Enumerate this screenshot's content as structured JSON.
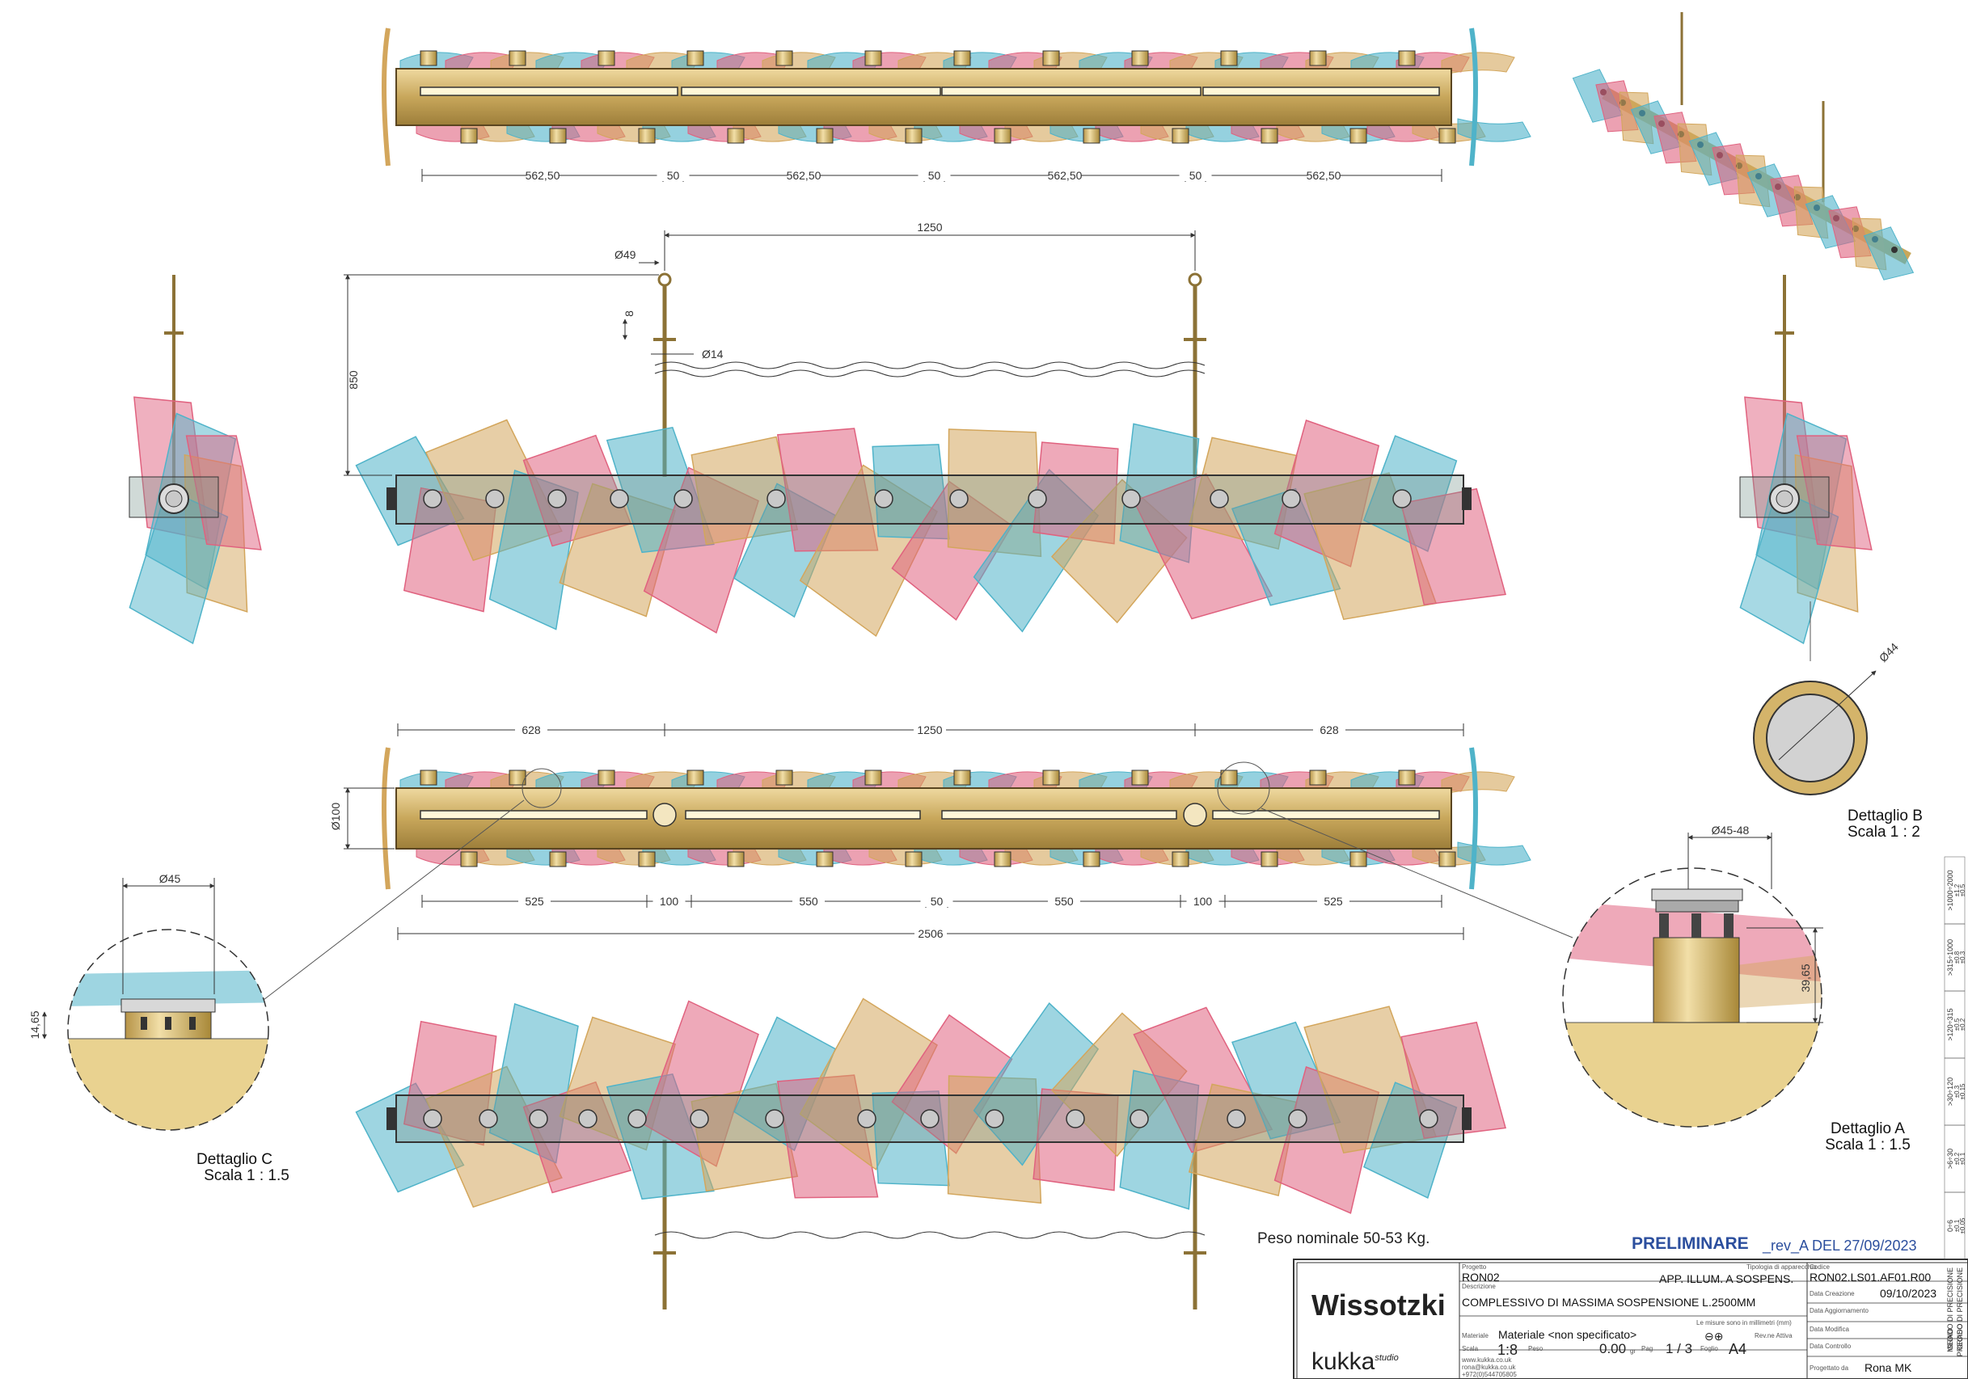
{
  "colors": {
    "brass": "#c8a75b",
    "brass_dark": "#8c7236",
    "teal": "#4fb3c9",
    "pink": "#e0627f",
    "amber": "#d3a65c",
    "title_blue": "#2c4f9e",
    "line": "#333333"
  },
  "top_view": {
    "dims": [
      "562,50",
      "50",
      "562,50",
      "50",
      "562,50",
      "50",
      "562,50"
    ]
  },
  "front_view": {
    "dim_span": "1250",
    "dim_height": "850",
    "dim_eye": "Ø49",
    "dim_gap": "8",
    "dim_rod": "Ø14"
  },
  "section_view": {
    "dims_top": [
      "628",
      "1250",
      "628"
    ],
    "dim_height": "Ø100",
    "dims_bottom": [
      "525",
      "100",
      "550",
      "50",
      "550",
      "100",
      "525"
    ],
    "dim_total": "2506"
  },
  "detail_a": {
    "title": "Dettaglio A",
    "scale": "Scala 1 : 1.5",
    "dim_dia": "Ø45-48",
    "dim_height": "39,65"
  },
  "detail_b": {
    "title": "Dettaglio B",
    "scale": "Scala 1 : 2",
    "dim_dia": "Ø44"
  },
  "detail_c": {
    "title": "Dettaglio C",
    "scale": "Scala 1 : 1.5",
    "dim_dia": "Ø45",
    "dim_height": "14,65"
  },
  "weight_note": "Peso nominale 50-53 Kg.",
  "status": {
    "main": "PRELIMINARE",
    "rev": "_rev_A DEL 27/09/2023"
  },
  "title_block": {
    "brand": "Wissotzki",
    "studio": "kukka",
    "studio_sup": "studio",
    "progetto_label": "Progetto",
    "progetto": "RON02",
    "tipologia_label": "Tipologia di apparecchio",
    "tipologia": "APP. ILLUM. A SOSPENS.",
    "codice_label": "Codice",
    "codice": "RON02.LS01.AF01.R00",
    "descrizione_label": "Descrizione",
    "descrizione": "COMPLESSIVO DI MASSIMA SOSPENSIONE L.2500MM",
    "data_creazione_label": "Data Creazione",
    "data_creazione": "09/10/2023",
    "data_aggiornamento_label": "Data Aggiornamento",
    "data_modifica_label": "Data Modifica",
    "data_controllo_label": "Data Controllo",
    "progettato_label": "Progettato da",
    "progettato": "Rona MK",
    "units_note": "Le misure sono in millimetri (mm)",
    "materiale_label": "Materiale",
    "materiale": "Materiale <non specificato>",
    "rev_label": "Rev.ne Attiva",
    "scala_label": "Scala",
    "scala": "1:8",
    "peso_label": "Peso",
    "peso": "0.00",
    "peso_unit": "gr",
    "pag_label": "Pag",
    "pag": "1 / 3",
    "foglio_label": "Foglio",
    "foglio": "A4",
    "web": "www.kukka.co.uk",
    "email": "rona@kukka.co.uk",
    "phone": "+972(0)544705805"
  },
  "tolerance": {
    "ranges": [
      "0÷6",
      ">6÷30",
      ">30÷120",
      ">120÷315",
      ">315÷1000",
      ">1000÷2000"
    ],
    "row_labels": [
      "MEDIO",
      "PRECISO"
    ],
    "vals_medio": [
      "±0.1",
      "±0.2",
      "±0.3",
      "±0.5",
      "±0.8",
      "±1.2"
    ],
    "vals_preciso": [
      "±0.05",
      "±0.1",
      "±0.15",
      "±0.2",
      "±0.3",
      "±0.5"
    ],
    "label1": "GRADO DI PRECISIONE",
    "label2": "GRADO DI PRECISIONE"
  }
}
